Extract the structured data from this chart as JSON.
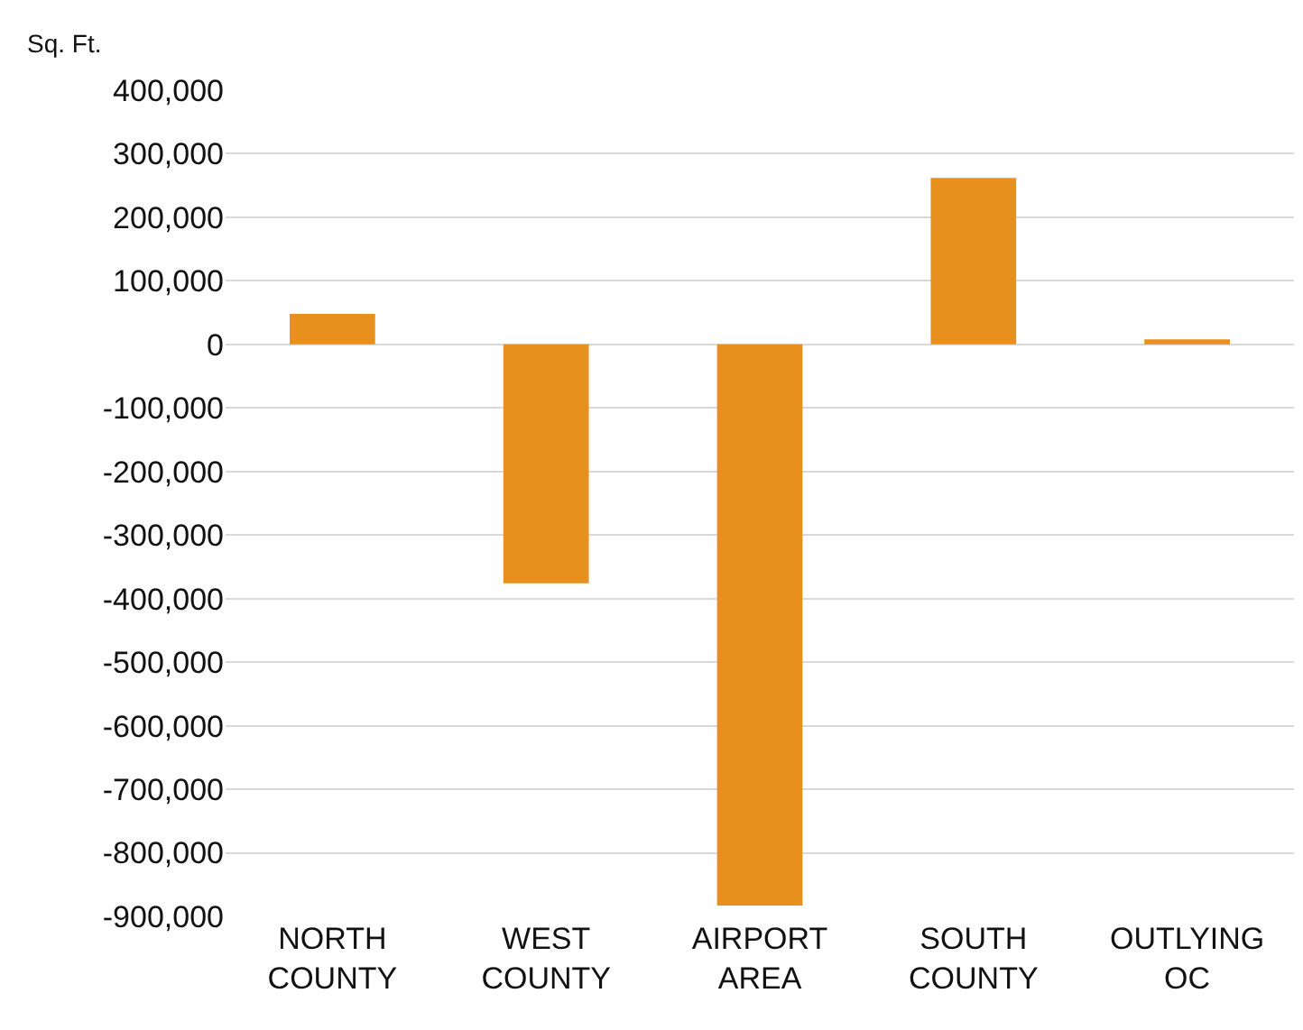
{
  "chart_data": {
    "type": "bar",
    "ylabel": "Sq. Ft.",
    "categories": [
      "NORTH COUNTY",
      "WEST COUNTY",
      "AIRPORT AREA",
      "SOUTH COUNTY",
      "OUTLYING OC"
    ],
    "values": [
      48000,
      -376000,
      -883000,
      262000,
      8000
    ],
    "color": "#e8901e",
    "ylim": [
      -900000,
      400000
    ],
    "yticks": [
      {
        "value": -900000,
        "label": "-900,000"
      },
      {
        "value": -800000,
        "label": "-800,000"
      },
      {
        "value": -700000,
        "label": "-700,000"
      },
      {
        "value": -600000,
        "label": "-600,000"
      },
      {
        "value": -500000,
        "label": "-500,000"
      },
      {
        "value": -400000,
        "label": "-400,000"
      },
      {
        "value": -300000,
        "label": "-300,000"
      },
      {
        "value": -200000,
        "label": "-200,000"
      },
      {
        "value": -100000,
        "label": "-100,000"
      },
      0,
      {
        "value": 100000,
        "label": "100,000"
      },
      {
        "value": 200000,
        "label": "200,000"
      },
      {
        "value": 300000,
        "label": "300,000"
      },
      {
        "value": 400000,
        "label": "400,000"
      }
    ],
    "grid": "y"
  }
}
